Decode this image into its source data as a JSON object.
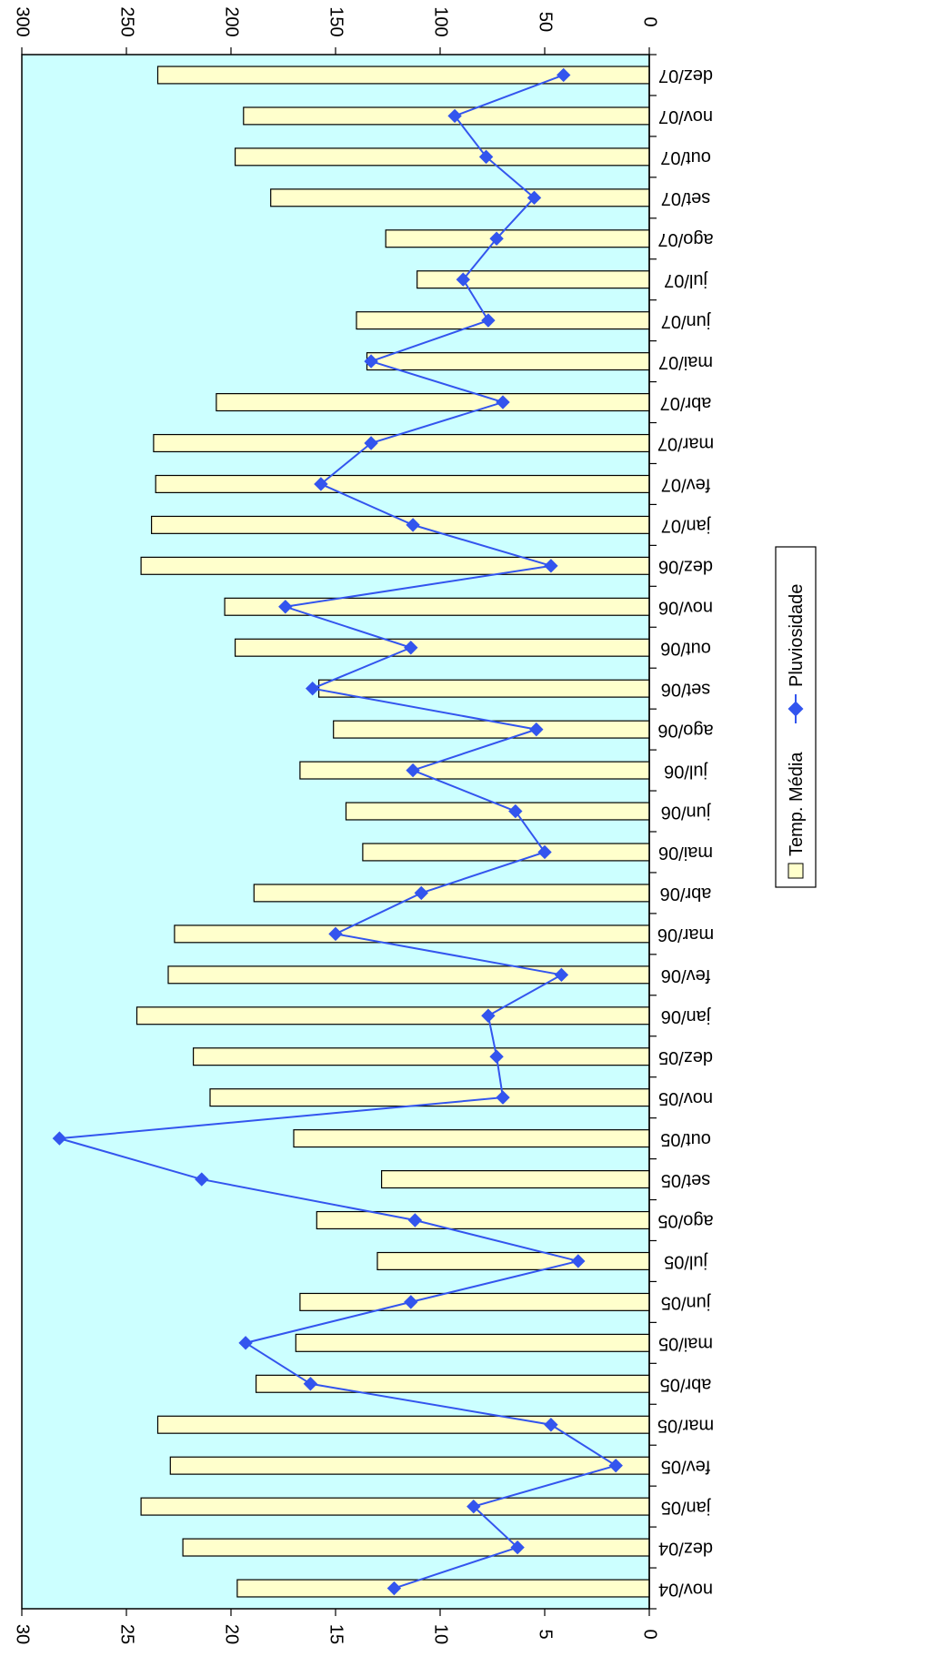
{
  "chart_data": {
    "type": "bar",
    "orientation": "horizontal",
    "rotated": "90deg clockwise",
    "categories": [
      "nov/04",
      "dez/04",
      "jan/05",
      "fev/05",
      "mar/05",
      "abr/05",
      "mai/05",
      "jun/05",
      "jul/05",
      "ago/05",
      "set/05",
      "out/05",
      "nov/05",
      "dez/05",
      "jan/06",
      "fev/06",
      "mar/06",
      "abr/06",
      "mai/06",
      "jun/06",
      "jul/06",
      "ago/06",
      "set/06",
      "out/06",
      "nov/06",
      "dez/06",
      "jan/07",
      "fev/07",
      "mar/07",
      "abr/07",
      "mai/07",
      "jun/07",
      "jul/07",
      "ago/07",
      "set/07",
      "out/07",
      "nov/07",
      "dez/07"
    ],
    "series": [
      {
        "name": "Temp. Média",
        "type": "bar",
        "axis": "bottom",
        "color": "#ffffcc",
        "values": [
          19.7,
          22.3,
          24.3,
          22.9,
          23.5,
          18.8,
          16.9,
          16.7,
          13.0,
          15.9,
          12.8,
          17.0,
          21.0,
          21.8,
          24.5,
          23.0,
          22.7,
          18.9,
          13.7,
          14.5,
          16.7,
          15.1,
          15.8,
          19.8,
          20.3,
          24.3,
          23.8,
          23.6,
          23.7,
          20.7,
          13.5,
          14.0,
          11.1,
          12.6,
          18.1,
          19.8,
          19.4,
          23.5
        ]
      },
      {
        "name": "Pluviosidade",
        "type": "line",
        "axis": "top",
        "color": "#3355ee",
        "marker": "diamond",
        "values": [
          122,
          63,
          84,
          16,
          47,
          162,
          193,
          114,
          34,
          112,
          214,
          282,
          70,
          73,
          77,
          42,
          150,
          109,
          50,
          64,
          113,
          54,
          161,
          114,
          174,
          47,
          113,
          157,
          133,
          70,
          133,
          77,
          89,
          73,
          55,
          78,
          93,
          41
        ]
      }
    ],
    "bottom_axis": {
      "range": [
        0,
        30
      ],
      "ticks": [
        "0",
        "5",
        "10",
        "15",
        "20",
        "25",
        "30"
      ]
    },
    "top_axis": {
      "range": [
        0,
        300
      ],
      "ticks": [
        "0",
        "50",
        "100",
        "150",
        "200",
        "250",
        "300"
      ]
    },
    "plot_background": "#ccffff",
    "grid": false,
    "legend": {
      "placement": "right",
      "entries": [
        "Temp. Média",
        "Pluviosidade"
      ]
    }
  }
}
